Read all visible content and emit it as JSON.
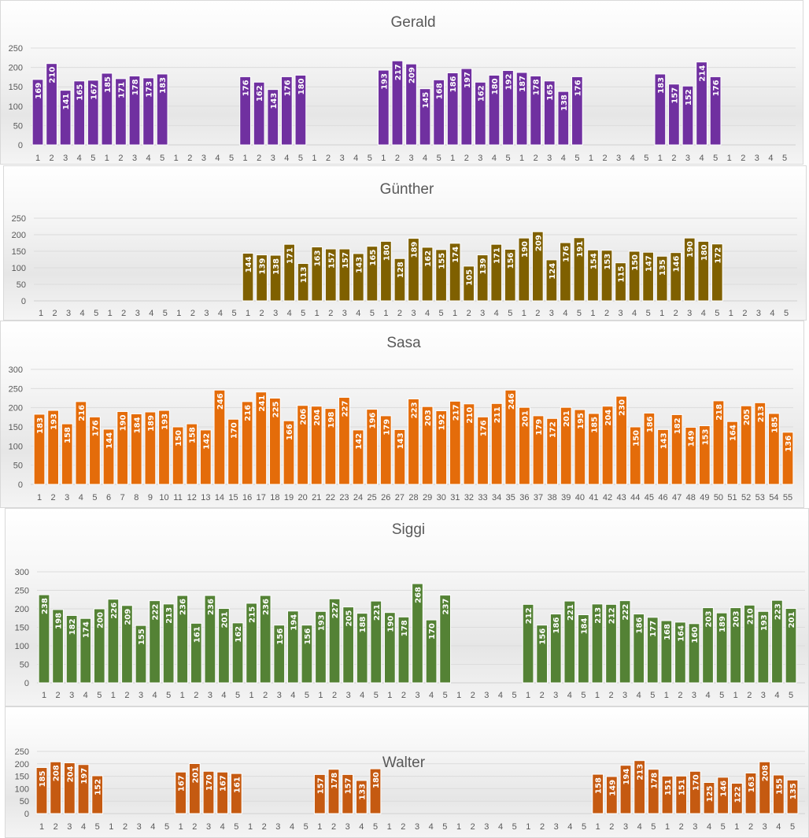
{
  "chart_data": [
    {
      "type": "bar",
      "title": "Gerald",
      "color": "#7030a0",
      "xlabel": "",
      "ylabel": "",
      "ylim": [
        0,
        250
      ],
      "yticks": [
        0,
        50,
        100,
        150,
        200,
        250
      ],
      "grid": true,
      "categories": [
        "1",
        "2",
        "3",
        "4",
        "5",
        "1",
        "2",
        "3",
        "4",
        "5",
        "1",
        "2",
        "3",
        "4",
        "5",
        "1",
        "2",
        "3",
        "4",
        "5",
        "1",
        "2",
        "3",
        "4",
        "5",
        "1",
        "2",
        "3",
        "4",
        "5",
        "1",
        "2",
        "3",
        "4",
        "5",
        "1",
        "2",
        "3",
        "4",
        "5",
        "1",
        "2",
        "3",
        "4",
        "5",
        "1",
        "2",
        "3",
        "4",
        "5",
        "1",
        "2",
        "3",
        "4",
        "5"
      ],
      "values": [
        169,
        210,
        141,
        165,
        167,
        185,
        171,
        178,
        173,
        183,
        null,
        null,
        null,
        null,
        null,
        176,
        162,
        143,
        176,
        180,
        null,
        null,
        null,
        null,
        null,
        193,
        217,
        209,
        145,
        168,
        186,
        197,
        162,
        180,
        192,
        187,
        178,
        165,
        138,
        176,
        null,
        null,
        null,
        null,
        null,
        183,
        157,
        152,
        214,
        176,
        null,
        null,
        null,
        null,
        null
      ]
    },
    {
      "type": "bar",
      "title": "Günther",
      "color": "#7f6000",
      "xlabel": "",
      "ylabel": "",
      "ylim": [
        0,
        250
      ],
      "yticks": [
        0,
        50,
        100,
        150,
        200,
        250
      ],
      "grid": true,
      "categories": [
        "1",
        "2",
        "3",
        "4",
        "5",
        "1",
        "2",
        "3",
        "4",
        "5",
        "1",
        "2",
        "3",
        "4",
        "5",
        "1",
        "2",
        "3",
        "4",
        "5",
        "1",
        "2",
        "3",
        "4",
        "5",
        "1",
        "2",
        "3",
        "4",
        "5",
        "1",
        "2",
        "3",
        "4",
        "5",
        "1",
        "2",
        "3",
        "4",
        "5",
        "1",
        "2",
        "3",
        "4",
        "5",
        "1",
        "2",
        "3",
        "4",
        "5",
        "1",
        "2",
        "3",
        "4",
        "5"
      ],
      "values": [
        null,
        null,
        null,
        null,
        null,
        null,
        null,
        null,
        null,
        null,
        null,
        null,
        null,
        null,
        null,
        144,
        139,
        138,
        171,
        113,
        163,
        157,
        157,
        143,
        165,
        180,
        128,
        189,
        162,
        155,
        174,
        105,
        139,
        171,
        156,
        190,
        209,
        124,
        176,
        191,
        154,
        153,
        115,
        150,
        147,
        135,
        146,
        190,
        180,
        172,
        null,
        null,
        null,
        null,
        null
      ]
    },
    {
      "type": "bar",
      "title": "Sasa",
      "color": "#e46c0a",
      "xlabel": "",
      "ylabel": "",
      "ylim": [
        0,
        300
      ],
      "yticks": [
        0,
        50,
        100,
        150,
        200,
        250,
        300
      ],
      "grid": true,
      "categories": [
        "1",
        "2",
        "3",
        "4",
        "5",
        "6",
        "7",
        "8",
        "9",
        "10",
        "11",
        "12",
        "13",
        "14",
        "15",
        "16",
        "17",
        "18",
        "19",
        "20",
        "21",
        "22",
        "23",
        "24",
        "25",
        "26",
        "27",
        "28",
        "29",
        "30",
        "31",
        "32",
        "33",
        "34",
        "35",
        "36",
        "37",
        "38",
        "39",
        "40",
        "41",
        "42",
        "43",
        "44",
        "45",
        "46",
        "47",
        "48",
        "49",
        "50",
        "51",
        "52",
        "53",
        "54",
        "55"
      ],
      "values": [
        183,
        193,
        158,
        216,
        176,
        144,
        190,
        184,
        189,
        193,
        150,
        158,
        142,
        246,
        170,
        216,
        241,
        225,
        166,
        206,
        204,
        198,
        227,
        142,
        196,
        179,
        143,
        223,
        203,
        192,
        217,
        210,
        176,
        211,
        246,
        201,
        179,
        172,
        201,
        195,
        185,
        204,
        230,
        150,
        186,
        143,
        182,
        149,
        153,
        218,
        164,
        205,
        213,
        185,
        136
      ]
    },
    {
      "type": "bar",
      "title": "Siggi",
      "color": "#548235",
      "xlabel": "",
      "ylabel": "",
      "ylim": [
        0,
        300
      ],
      "yticks": [
        0,
        50,
        100,
        150,
        200,
        250,
        300
      ],
      "grid": true,
      "categories": [
        "1",
        "2",
        "3",
        "4",
        "5",
        "1",
        "2",
        "3",
        "4",
        "5",
        "1",
        "2",
        "3",
        "4",
        "5",
        "1",
        "2",
        "3",
        "4",
        "5",
        "1",
        "2",
        "3",
        "4",
        "5",
        "1",
        "2",
        "3",
        "4",
        "5",
        "1",
        "2",
        "3",
        "4",
        "5",
        "1",
        "2",
        "3",
        "4",
        "5",
        "1",
        "2",
        "3",
        "4",
        "5",
        "1",
        "2",
        "3",
        "4",
        "5",
        "1",
        "2",
        "3",
        "4",
        "5"
      ],
      "values": [
        238,
        198,
        182,
        174,
        200,
        226,
        209,
        155,
        222,
        213,
        236,
        161,
        236,
        201,
        162,
        215,
        236,
        156,
        194,
        156,
        193,
        227,
        205,
        188,
        221,
        190,
        178,
        268,
        170,
        237,
        null,
        null,
        null,
        null,
        null,
        212,
        156,
        186,
        221,
        184,
        213,
        212,
        222,
        186,
        177,
        168,
        164,
        160,
        203,
        189,
        203,
        210,
        193,
        223,
        201
      ]
    },
    {
      "type": "bar",
      "title": "Walter",
      "color": "#c55a11",
      "xlabel": "",
      "ylabel": "",
      "ylim": [
        0,
        250
      ],
      "yticks": [
        0,
        50,
        100,
        150,
        200,
        250
      ],
      "grid": true,
      "categories": [
        "1",
        "2",
        "3",
        "4",
        "5",
        "1",
        "2",
        "3",
        "4",
        "5",
        "1",
        "2",
        "3",
        "4",
        "5",
        "1",
        "2",
        "3",
        "4",
        "5",
        "1",
        "2",
        "3",
        "4",
        "5",
        "1",
        "2",
        "3",
        "4",
        "5",
        "1",
        "2",
        "3",
        "4",
        "5",
        "1",
        "2",
        "3",
        "4",
        "5",
        "1",
        "2",
        "3",
        "4",
        "5",
        "1",
        "2",
        "3",
        "4",
        "5",
        "1",
        "2",
        "3",
        "4",
        "5"
      ],
      "values": [
        185,
        208,
        204,
        197,
        152,
        null,
        null,
        null,
        null,
        null,
        167,
        201,
        170,
        167,
        161,
        null,
        null,
        null,
        null,
        null,
        157,
        178,
        157,
        133,
        180,
        null,
        null,
        null,
        null,
        null,
        null,
        null,
        null,
        null,
        null,
        null,
        null,
        null,
        null,
        null,
        158,
        149,
        194,
        213,
        178,
        151,
        151,
        170,
        125,
        146,
        122,
        163,
        208,
        155,
        135
      ]
    }
  ]
}
